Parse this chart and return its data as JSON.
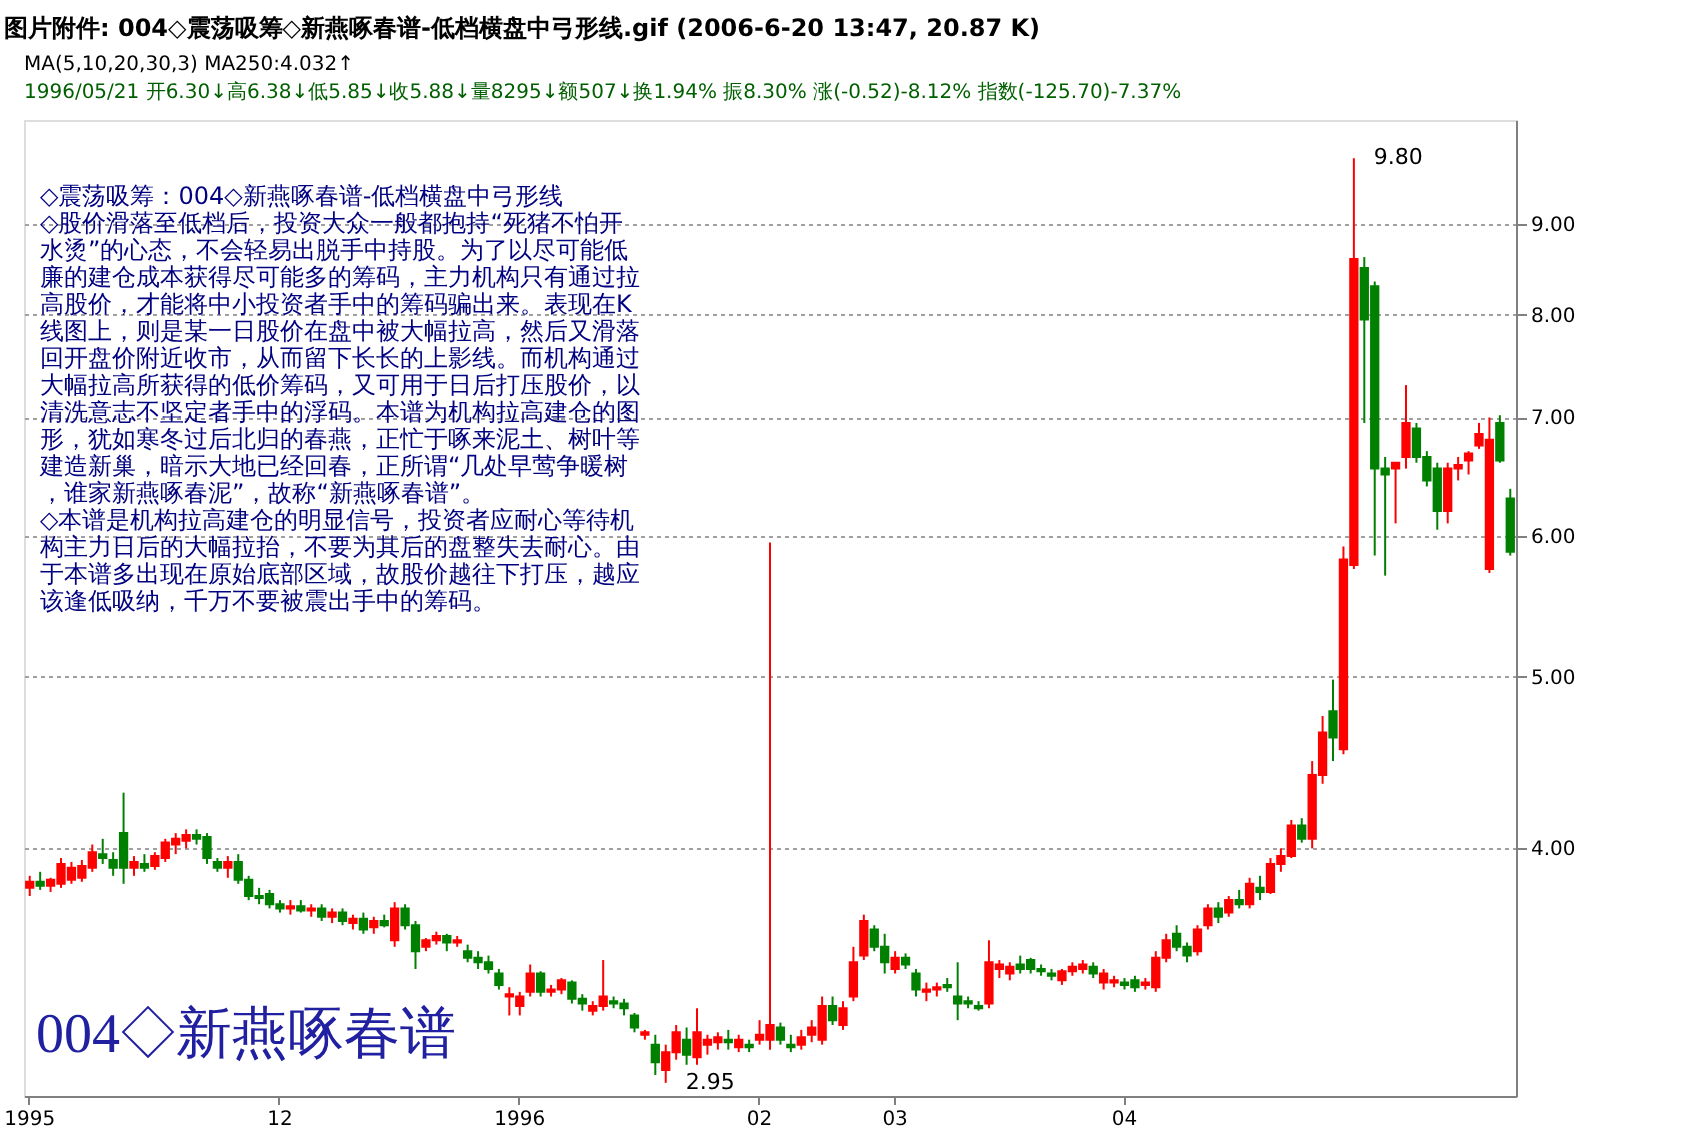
{
  "chart_data": {
    "type": "candlestick",
    "title": "图片附件: 004◇震荡吸筹◇新燕啄春谱-低档横盘中弓形线.gif (2006-6-20 13:47, 20.87 K)",
    "subtitle": "MA(5,10,20,30,3) MA250:4.032↑",
    "annotations": [
      "1996/05/21 开6.30↓高6.38↓低5.85↓收5.88↓量8295↓额507↓换1.94% 振8.30% 涨(-0.52)-8.12% 指数(-125.70)-7.37%",
      "◇震荡吸筹：004◇新燕啄春谱-低档横盘中弓形线",
      "◇股价滑落至低档后，投资大众一般都抱持“死猪不怕开",
      "水烫”的心态，不会轻易出脱手中持股。为了以尽可能低",
      "廉的建仓成本获得尽可能多的筹码，主力机构只有通过拉",
      "高股价，才能将中小投资者手中的筹码骗出来。表现在K",
      "线图上，则是某一日股价在盘中被大幅拉高，然后又滑落",
      "回开盘价附近收市，从而留下长长的上影线。而机构通过",
      "大幅拉高所获得的低价筹码，又可用于日后打压股价，以",
      "清洗意志不坚定者手中的浮码。本谱为机构拉高建仓的图",
      "形，犹如寒冬过后北归的春燕，正忙于啄来泥土、树叶等",
      "建造新巢，暗示大地已经回春，正所谓“几处早莺争暖树",
      "，谁家新燕啄春泥”，故称“新燕啄春谱”。",
      "◇本谱是机构拉高建仓的明显信号，投资者应耐心等待机",
      "构主力日后的大幅拉抬，不要为其后的盘整失去耐心。由",
      "于本谱多出现在原始底部区域，故股价越往下打压，越应",
      "该逢低吸纳，千万不要被震出手中的筹码。",
      "004◇新燕啄春谱",
      "2.95",
      "9.80"
    ],
    "categories": [
      "1995",
      null,
      null,
      null,
      null,
      null,
      null,
      null,
      null,
      null,
      null,
      null,
      null,
      null,
      null,
      null,
      null,
      null,
      null,
      null,
      null,
      null,
      null,
      null,
      "12",
      null,
      null,
      null,
      null,
      null,
      null,
      null,
      null,
      null,
      null,
      null,
      null,
      null,
      null,
      null,
      null,
      null,
      null,
      null,
      null,
      null,
      null,
      "1996",
      null,
      null,
      null,
      null,
      null,
      null,
      null,
      null,
      null,
      null,
      null,
      null,
      null,
      null,
      null,
      null,
      null,
      null,
      null,
      null,
      null,
      null,
      "02",
      null,
      null,
      null,
      null,
      null,
      null,
      null,
      null,
      null,
      null,
      null,
      null,
      "03",
      null,
      null,
      null,
      null,
      null,
      null,
      null,
      null,
      null,
      null,
      null,
      null,
      null,
      null,
      null,
      null,
      null,
      null,
      null,
      null,
      null,
      "04",
      null,
      null,
      null,
      null,
      null,
      null,
      null,
      null,
      null,
      null,
      null,
      null,
      null,
      null,
      null,
      null,
      null,
      null,
      null,
      null,
      null,
      null,
      null,
      null,
      null,
      null,
      null,
      null,
      null,
      null,
      null,
      null,
      null,
      null,
      null,
      null,
      null
    ],
    "ohlc": [
      [
        3.8,
        3.86,
        3.76,
        3.83
      ],
      [
        3.83,
        3.88,
        3.79,
        3.81
      ],
      [
        3.81,
        3.85,
        3.78,
        3.84
      ],
      [
        3.82,
        3.95,
        3.8,
        3.92
      ],
      [
        3.84,
        3.93,
        3.82,
        3.9
      ],
      [
        3.85,
        3.94,
        3.83,
        3.91
      ],
      [
        3.9,
        4.02,
        3.88,
        3.98
      ],
      [
        3.97,
        4.05,
        3.92,
        3.95
      ],
      [
        3.94,
        3.98,
        3.86,
        3.9
      ],
      [
        4.08,
        4.3,
        3.82,
        3.9
      ],
      [
        3.9,
        3.96,
        3.86,
        3.93
      ],
      [
        3.92,
        3.97,
        3.88,
        3.9
      ],
      [
        3.91,
        3.98,
        3.89,
        3.96
      ],
      [
        3.95,
        4.05,
        3.93,
        4.03
      ],
      [
        4.02,
        4.08,
        3.97,
        4.05
      ],
      [
        4.04,
        4.1,
        4.0,
        4.07
      ],
      [
        4.07,
        4.1,
        4.02,
        4.05
      ],
      [
        4.06,
        4.08,
        3.92,
        3.95
      ],
      [
        3.93,
        3.95,
        3.88,
        3.9
      ],
      [
        3.9,
        3.96,
        3.85,
        3.93
      ],
      [
        3.93,
        3.97,
        3.82,
        3.84
      ],
      [
        3.84,
        3.86,
        3.74,
        3.76
      ],
      [
        3.76,
        3.8,
        3.72,
        3.75
      ],
      [
        3.77,
        3.79,
        3.7,
        3.72
      ],
      [
        3.72,
        3.74,
        3.68,
        3.7
      ],
      [
        3.7,
        3.74,
        3.67,
        3.71
      ],
      [
        3.71,
        3.74,
        3.68,
        3.69
      ],
      [
        3.69,
        3.72,
        3.66,
        3.7
      ],
      [
        3.7,
        3.72,
        3.64,
        3.66
      ],
      [
        3.66,
        3.7,
        3.63,
        3.68
      ],
      [
        3.68,
        3.7,
        3.62,
        3.64
      ],
      [
        3.63,
        3.67,
        3.6,
        3.65
      ],
      [
        3.65,
        3.68,
        3.58,
        3.6
      ],
      [
        3.61,
        3.66,
        3.58,
        3.64
      ],
      [
        3.64,
        3.67,
        3.61,
        3.62
      ],
      [
        3.55,
        3.73,
        3.52,
        3.7
      ],
      [
        3.7,
        3.72,
        3.6,
        3.62
      ],
      [
        3.62,
        3.64,
        3.42,
        3.5
      ],
      [
        3.52,
        3.56,
        3.5,
        3.55
      ],
      [
        3.55,
        3.59,
        3.53,
        3.57
      ],
      [
        3.57,
        3.58,
        3.5,
        3.54
      ],
      [
        3.54,
        3.57,
        3.52,
        3.55
      ],
      [
        3.5,
        3.53,
        3.45,
        3.47
      ],
      [
        3.47,
        3.5,
        3.42,
        3.45
      ],
      [
        3.45,
        3.48,
        3.4,
        3.42
      ],
      [
        3.4,
        3.42,
        3.33,
        3.35
      ],
      [
        3.3,
        3.34,
        3.22,
        3.31
      ],
      [
        3.26,
        3.32,
        3.22,
        3.3
      ],
      [
        3.32,
        3.44,
        3.3,
        3.4
      ],
      [
        3.4,
        3.41,
        3.3,
        3.32
      ],
      [
        3.32,
        3.35,
        3.3,
        3.33
      ],
      [
        3.33,
        3.38,
        3.31,
        3.37
      ],
      [
        3.36,
        3.37,
        3.27,
        3.29
      ],
      [
        3.29,
        3.31,
        3.24,
        3.27
      ],
      [
        3.24,
        3.28,
        3.22,
        3.26
      ],
      [
        3.26,
        3.46,
        3.24,
        3.3
      ],
      [
        3.28,
        3.3,
        3.25,
        3.27
      ],
      [
        3.27,
        3.29,
        3.22,
        3.25
      ],
      [
        3.22,
        3.23,
        3.15,
        3.17
      ],
      [
        3.14,
        3.16,
        3.12,
        3.15
      ],
      [
        3.1,
        3.14,
        2.98,
        3.03
      ],
      [
        3.0,
        3.1,
        2.95,
        3.07
      ],
      [
        3.07,
        3.18,
        3.04,
        3.15
      ],
      [
        3.12,
        3.17,
        3.02,
        3.06
      ],
      [
        3.05,
        3.25,
        3.02,
        3.15
      ],
      [
        3.1,
        3.14,
        3.06,
        3.12
      ],
      [
        3.11,
        3.15,
        3.08,
        3.13
      ],
      [
        3.12,
        3.16,
        3.08,
        3.11
      ],
      [
        3.09,
        3.14,
        3.07,
        3.12
      ],
      [
        3.1,
        3.12,
        3.07,
        3.09
      ],
      [
        3.12,
        3.2,
        3.1,
        3.14
      ],
      [
        3.12,
        5.95,
        3.08,
        3.18
      ],
      [
        3.17,
        3.19,
        3.1,
        3.12
      ],
      [
        3.1,
        3.14,
        3.07,
        3.09
      ],
      [
        3.1,
        3.16,
        3.08,
        3.13
      ],
      [
        3.14,
        3.2,
        3.11,
        3.17
      ],
      [
        3.12,
        3.3,
        3.1,
        3.26
      ],
      [
        3.26,
        3.3,
        3.18,
        3.2
      ],
      [
        3.18,
        3.28,
        3.16,
        3.25
      ],
      [
        3.3,
        3.52,
        3.28,
        3.45
      ],
      [
        3.48,
        3.67,
        3.46,
        3.64
      ],
      [
        3.6,
        3.62,
        3.5,
        3.52
      ],
      [
        3.52,
        3.58,
        3.4,
        3.45
      ],
      [
        3.42,
        3.5,
        3.4,
        3.47
      ],
      [
        3.47,
        3.49,
        3.42,
        3.44
      ],
      [
        3.4,
        3.42,
        3.3,
        3.33
      ],
      [
        3.32,
        3.36,
        3.28,
        3.33
      ],
      [
        3.33,
        3.36,
        3.3,
        3.34
      ],
      [
        3.35,
        3.38,
        3.32,
        3.34
      ],
      [
        3.3,
        3.45,
        3.2,
        3.27
      ],
      [
        3.28,
        3.3,
        3.25,
        3.27
      ],
      [
        3.26,
        3.28,
        3.24,
        3.25
      ],
      [
        3.27,
        3.55,
        3.25,
        3.45
      ],
      [
        3.42,
        3.46,
        3.38,
        3.44
      ],
      [
        3.4,
        3.45,
        3.37,
        3.43
      ],
      [
        3.44,
        3.48,
        3.4,
        3.42
      ],
      [
        3.46,
        3.47,
        3.4,
        3.42
      ],
      [
        3.42,
        3.44,
        3.39,
        3.41
      ],
      [
        3.4,
        3.42,
        3.37,
        3.39
      ],
      [
        3.37,
        3.42,
        3.35,
        3.41
      ],
      [
        3.41,
        3.45,
        3.39,
        3.43
      ],
      [
        3.42,
        3.46,
        3.4,
        3.44
      ],
      [
        3.43,
        3.45,
        3.38,
        3.4
      ],
      [
        3.36,
        3.42,
        3.33,
        3.4
      ],
      [
        3.36,
        3.39,
        3.34,
        3.37
      ],
      [
        3.36,
        3.38,
        3.33,
        3.35
      ],
      [
        3.37,
        3.39,
        3.32,
        3.34
      ],
      [
        3.35,
        3.38,
        3.33,
        3.36
      ],
      [
        3.34,
        3.5,
        3.32,
        3.47
      ],
      [
        3.47,
        3.58,
        3.45,
        3.55
      ],
      [
        3.58,
        3.62,
        3.5,
        3.52
      ],
      [
        3.52,
        3.54,
        3.45,
        3.48
      ],
      [
        3.5,
        3.62,
        3.48,
        3.6
      ],
      [
        3.62,
        3.72,
        3.6,
        3.7
      ],
      [
        3.7,
        3.73,
        3.63,
        3.66
      ],
      [
        3.68,
        3.76,
        3.66,
        3.74
      ],
      [
        3.74,
        3.79,
        3.7,
        3.72
      ],
      [
        3.72,
        3.85,
        3.7,
        3.82
      ],
      [
        3.8,
        3.86,
        3.74,
        3.78
      ],
      [
        3.78,
        3.95,
        3.77,
        3.92
      ],
      [
        3.92,
        4.0,
        3.88,
        3.96
      ],
      [
        3.96,
        4.15,
        3.95,
        4.12
      ],
      [
        4.12,
        4.16,
        4.03,
        4.05
      ],
      [
        4.05,
        4.48,
        4.0,
        4.4
      ],
      [
        4.4,
        4.75,
        4.35,
        4.65
      ],
      [
        4.78,
        4.98,
        4.48,
        4.62
      ],
      [
        4.55,
        5.92,
        4.52,
        5.82
      ],
      [
        5.78,
        9.8,
        5.75,
        8.6
      ],
      [
        8.5,
        8.62,
        6.95,
        7.95
      ],
      [
        8.3,
        8.35,
        5.85,
        6.55
      ],
      [
        6.55,
        6.65,
        5.7,
        6.5
      ],
      [
        6.55,
        6.6,
        6.1,
        6.6
      ],
      [
        6.65,
        7.3,
        6.55,
        6.95
      ],
      [
        6.9,
        6.95,
        6.6,
        6.65
      ],
      [
        6.65,
        6.7,
        6.4,
        6.45
      ],
      [
        6.55,
        6.6,
        6.05,
        6.2
      ],
      [
        6.2,
        6.6,
        6.1,
        6.55
      ],
      [
        6.55,
        6.65,
        6.45,
        6.58
      ],
      [
        6.62,
        6.7,
        6.5,
        6.68
      ],
      [
        6.75,
        6.95,
        6.72,
        6.85
      ],
      [
        5.75,
        7.0,
        5.72,
        6.8
      ],
      [
        6.95,
        7.02,
        6.6,
        6.62
      ],
      [
        6.3,
        6.38,
        5.85,
        5.88
      ]
    ],
    "colors": [
      "#ff0000",
      "#008000",
      "#ff0000",
      "#ff0000",
      "#ff0000",
      "#ff0000",
      "#ff0000",
      "#008000",
      "#008000",
      "#008000",
      "#ff0000",
      "#008000",
      "#ff0000",
      "#ff0000",
      "#ff0000",
      "#ff0000",
      "#008000",
      "#008000",
      "#008000",
      "#ff0000",
      "#008000",
      "#008000",
      "#008000",
      "#008000",
      "#008000",
      "#ff0000",
      "#008000",
      "#ff0000",
      "#008000",
      "#ff0000",
      "#008000",
      "#ff0000",
      "#008000",
      "#ff0000",
      "#008000",
      "#ff0000",
      "#008000",
      "#008000",
      "#ff0000",
      "#ff0000",
      "#008000",
      "#ff0000",
      "#008000",
      "#008000",
      "#008000",
      "#008000",
      "#ff0000",
      "#ff0000",
      "#ff0000",
      "#008000",
      "#ff0000",
      "#ff0000",
      "#008000",
      "#008000",
      "#ff0000",
      "#ff0000",
      "#008000",
      "#008000",
      "#008000",
      "#ff0000",
      "#008000",
      "#ff0000",
      "#ff0000",
      "#008000",
      "#ff0000",
      "#ff0000",
      "#ff0000",
      "#008000",
      "#ff0000",
      "#008000",
      "#ff0000",
      "#ff0000",
      "#008000",
      "#008000",
      "#ff0000",
      "#ff0000",
      "#ff0000",
      "#008000",
      "#ff0000",
      "#ff0000",
      "#ff0000",
      "#008000",
      "#008000",
      "#ff0000",
      "#008000",
      "#008000",
      "#ff0000",
      "#ff0000",
      "#008000",
      "#008000",
      "#008000",
      "#008000",
      "#ff0000",
      "#ff0000",
      "#ff0000",
      "#008000",
      "#008000",
      "#008000",
      "#008000",
      "#ff0000",
      "#ff0000",
      "#ff0000",
      "#008000",
      "#ff0000",
      "#ff0000",
      "#008000",
      "#008000",
      "#ff0000",
      "#ff0000",
      "#ff0000",
      "#008000",
      "#008000",
      "#ff0000",
      "#ff0000",
      "#008000",
      "#ff0000",
      "#008000",
      "#ff0000",
      "#008000",
      "#ff0000",
      "#ff0000",
      "#ff0000",
      "#008000",
      "#ff0000",
      "#ff0000",
      "#008000",
      "#ff0000",
      "#ff0000",
      "#008000",
      "#008000",
      "#008000",
      "#ff0000",
      "#ff0000",
      "#008000",
      "#008000",
      "#008000",
      "#ff0000",
      "#ff0000",
      "#ff0000",
      "#ff0000",
      "#ff0000",
      "#008000",
      "#008000"
    ],
    "log": true,
    "ylim": [
      2.9,
      10.3
    ],
    "yticks": [
      {
        "value": 4,
        "label": "4.00"
      },
      {
        "value": 5,
        "label": "5.00"
      },
      {
        "value": 6,
        "label": "6.00"
      },
      {
        "value": 7,
        "label": "7.00"
      },
      {
        "value": 8,
        "label": "8.00"
      },
      {
        "value": 9,
        "label": "9.00"
      }
    ],
    "grid": "y"
  }
}
